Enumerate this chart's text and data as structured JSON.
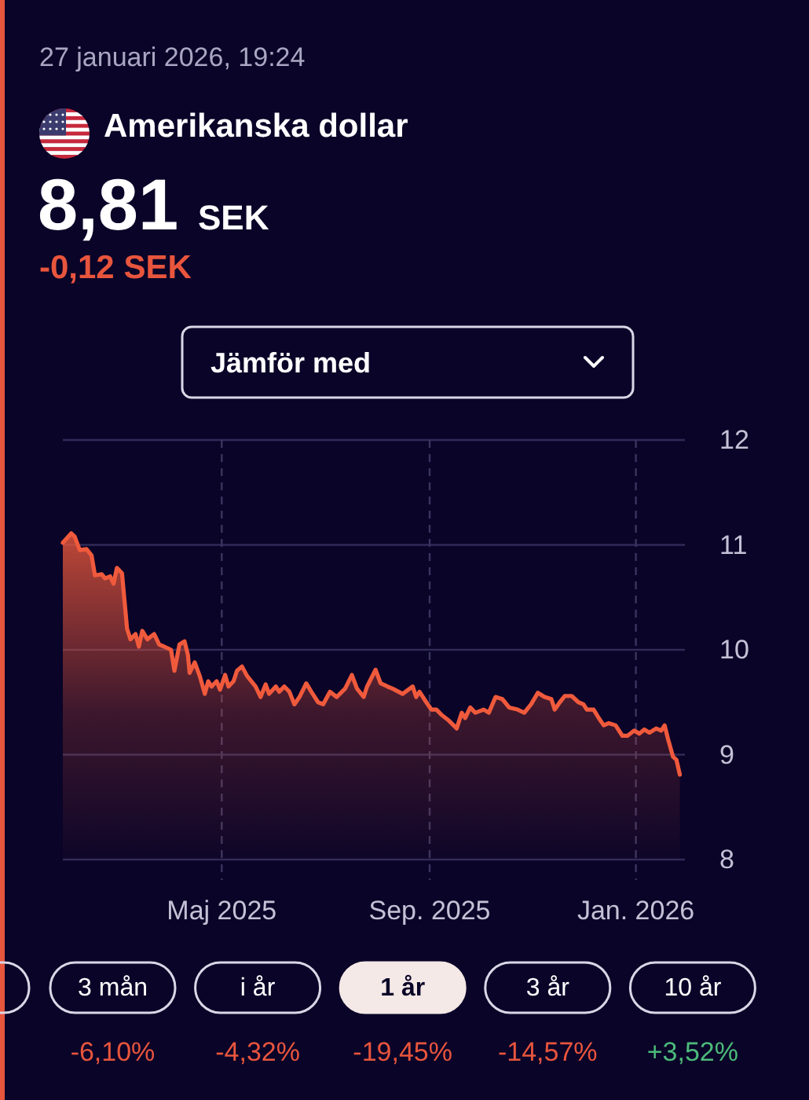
{
  "chart_data": {
    "type": "area",
    "title": "Amerikanska dollar",
    "subtitle": "27 januari 2026, 19:24",
    "annotations": [
      "8,81",
      "SEK",
      "-0,12 SEK",
      "Jämför med",
      "3 mån",
      "-6,10%",
      "i år",
      "-4,32%",
      "1 år",
      "-19,45%",
      "3 år",
      "-14,57%",
      "10 år",
      "+3,52%"
    ],
    "x": [
      "2025-01-27",
      "2025-02-01",
      "2025-02-03",
      "2025-02-06",
      "2025-02-10",
      "2025-02-13",
      "2025-02-15",
      "2025-02-19",
      "2025-02-21",
      "2025-02-24",
      "2025-02-26",
      "2025-02-28",
      "2025-03-03",
      "2025-03-06",
      "2025-03-08",
      "2025-03-11",
      "2025-03-13",
      "2025-03-15",
      "2025-03-18",
      "2025-03-22",
      "2025-03-25",
      "2025-03-28",
      "2025-04-01",
      "2025-04-03",
      "2025-04-06",
      "2025-04-09",
      "2025-04-11",
      "2025-04-12",
      "2025-04-15",
      "2025-04-18",
      "2025-04-21",
      "2025-04-23",
      "2025-04-25",
      "2025-04-28",
      "2025-04-30",
      "2025-05-03",
      "2025-05-05",
      "2025-05-08",
      "2025-05-10",
      "2025-05-13",
      "2025-05-16",
      "2025-05-21",
      "2025-05-24",
      "2025-05-27",
      "2025-05-29",
      "2025-06-02",
      "2025-06-04",
      "2025-06-07",
      "2025-06-10",
      "2025-06-13",
      "2025-06-16",
      "2025-06-20",
      "2025-06-23",
      "2025-06-27",
      "2025-06-30",
      "2025-07-04",
      "2025-07-08",
      "2025-07-13",
      "2025-07-17",
      "2025-07-20",
      "2025-07-24",
      "2025-07-26",
      "2025-07-31",
      "2025-08-03",
      "2025-08-07",
      "2025-08-10",
      "2025-08-16",
      "2025-08-22",
      "2025-08-24",
      "2025-08-26",
      "2025-08-30",
      "2025-09-02",
      "2025-09-05",
      "2025-09-08",
      "2025-09-12",
      "2025-09-17",
      "2025-09-20",
      "2025-09-22",
      "2025-09-25",
      "2025-09-28",
      "2025-10-03",
      "2025-10-06",
      "2025-10-10",
      "2025-10-14",
      "2025-10-18",
      "2025-10-23",
      "2025-10-27",
      "2025-10-31",
      "2025-11-04",
      "2025-11-08",
      "2025-11-12",
      "2025-11-14",
      "2025-11-17",
      "2025-11-20",
      "2025-11-24",
      "2025-11-28",
      "2025-12-01",
      "2025-12-03",
      "2025-12-07",
      "2025-12-10",
      "2025-12-13",
      "2025-12-16",
      "2025-12-20",
      "2025-12-24",
      "2025-12-27",
      "2025-12-31",
      "2026-01-03",
      "2026-01-06",
      "2026-01-09",
      "2026-01-13",
      "2026-01-16",
      "2026-01-18",
      "2026-01-20",
      "2026-01-23",
      "2026-01-25",
      "2026-01-27"
    ],
    "values": [
      11.02,
      11.11,
      11.08,
      10.95,
      10.96,
      10.9,
      10.71,
      10.72,
      10.68,
      10.7,
      10.63,
      10.78,
      10.73,
      10.2,
      10.1,
      10.15,
      10.03,
      10.18,
      10.1,
      10.15,
      10.05,
      10.03,
      10.0,
      9.8,
      10.05,
      10.08,
      9.95,
      9.78,
      9.88,
      9.75,
      9.58,
      9.7,
      9.65,
      9.7,
      9.62,
      9.76,
      9.65,
      9.7,
      9.8,
      9.84,
      9.75,
      9.65,
      9.55,
      9.67,
      9.58,
      9.65,
      9.6,
      9.65,
      9.6,
      9.48,
      9.55,
      9.68,
      9.6,
      9.5,
      9.48,
      9.6,
      9.55,
      9.63,
      9.76,
      9.63,
      9.55,
      9.65,
      9.81,
      9.68,
      9.65,
      9.63,
      9.58,
      9.65,
      9.55,
      9.6,
      9.5,
      9.43,
      9.43,
      9.38,
      9.33,
      9.25,
      9.4,
      9.35,
      9.45,
      9.4,
      9.43,
      9.4,
      9.55,
      9.53,
      9.45,
      9.43,
      9.4,
      9.48,
      9.59,
      9.55,
      9.53,
      9.43,
      9.5,
      9.56,
      9.56,
      9.5,
      9.48,
      9.43,
      9.43,
      9.35,
      9.28,
      9.3,
      9.28,
      9.18,
      9.18,
      9.23,
      9.2,
      9.24,
      9.21,
      9.25,
      9.23,
      9.28,
      9.15,
      8.98,
      8.95,
      8.81
    ],
    "color": "#f05a3c",
    "xlim": [
      "2025-01-27",
      "2026-01-30"
    ],
    "xticks": [
      {
        "value": "2025-05-01",
        "label": "Maj 2025"
      },
      {
        "value": "2025-09-01",
        "label": "Sep. 2025"
      },
      {
        "value": "2026-01-01",
        "label": "Jan. 2026"
      }
    ],
    "ylim": [
      8,
      12
    ],
    "yticks": [
      8,
      9,
      10,
      11,
      12
    ],
    "grid": true
  }
}
